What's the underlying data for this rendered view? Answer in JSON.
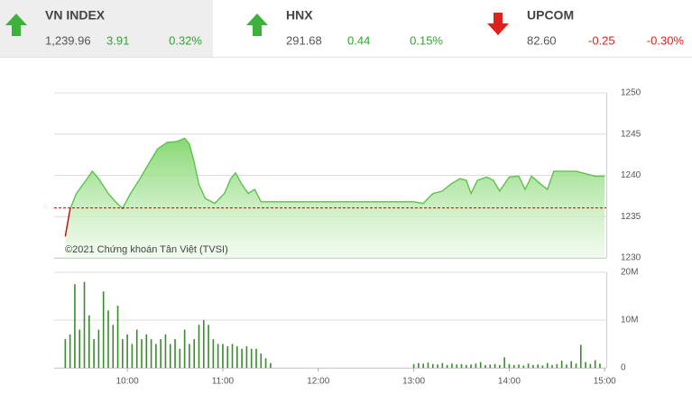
{
  "tickers": [
    {
      "name": "VN INDEX",
      "value": "1,239.96",
      "change": "3.91",
      "percent": "0.32%",
      "direction": "up"
    },
    {
      "name": "HNX",
      "value": "291.68",
      "change": "0.44",
      "percent": "0.15%",
      "direction": "up"
    },
    {
      "name": "UPCOM",
      "value": "82.60",
      "change": "-0.25",
      "percent": "-0.30%",
      "direction": "down"
    }
  ],
  "chart_data": [
    {
      "type": "area",
      "watermark": "©2021 Chứng khoán Tân Việt (TVSI)",
      "x": [
        561,
        564,
        568,
        574,
        578,
        582,
        588,
        593,
        597,
        602,
        608,
        614,
        619,
        625,
        631,
        636,
        639,
        642,
        645,
        649,
        655,
        661,
        665,
        668,
        672,
        676,
        680,
        684,
        690,
        780,
        786,
        792,
        798,
        803,
        809,
        813,
        816,
        820,
        826,
        830,
        834,
        840,
        846,
        850,
        854,
        860,
        864,
        868,
        882,
        894,
        900
      ],
      "series": [
        {
          "color": "#5cc24a",
          "values": [
            1232.6,
            1235.9,
            1237.8,
            1239.4,
            1240.5,
            1239.6,
            1237.8,
            1236.7,
            1236.0,
            1237.8,
            1239.6,
            1241.6,
            1243.2,
            1244.0,
            1244.1,
            1244.5,
            1243.8,
            1241.6,
            1238.9,
            1237.2,
            1236.6,
            1237.8,
            1239.6,
            1240.3,
            1238.9,
            1237.8,
            1238.3,
            1236.8,
            1236.8,
            1236.8,
            1236.6,
            1237.8,
            1238.1,
            1238.9,
            1239.6,
            1239.4,
            1237.8,
            1239.4,
            1239.8,
            1239.4,
            1238.1,
            1239.8,
            1239.9,
            1238.3,
            1239.9,
            1238.9,
            1238.3,
            1240.5,
            1240.5,
            1239.9,
            1239.9
          ]
        }
      ],
      "reference_line": {
        "value": 1236.05,
        "color": "#cc0000"
      },
      "below_color": "#cc0000",
      "xlim": [
        554,
        901
      ],
      "ylim": [
        1230,
        1250
      ],
      "yticks": [
        1230,
        1235,
        1240,
        1245,
        1250
      ],
      "grid": true
    },
    {
      "type": "bar",
      "x": [
        561,
        564,
        567,
        570,
        573,
        576,
        579,
        582,
        585,
        588,
        591,
        594,
        597,
        600,
        603,
        606,
        609,
        612,
        615,
        618,
        621,
        624,
        627,
        630,
        633,
        636,
        639,
        642,
        645,
        648,
        651,
        654,
        657,
        660,
        663,
        666,
        669,
        672,
        675,
        678,
        681,
        684,
        687,
        690,
        780,
        783,
        786,
        789,
        792,
        795,
        798,
        801,
        804,
        807,
        810,
        813,
        816,
        819,
        822,
        825,
        828,
        831,
        834,
        837,
        840,
        843,
        846,
        849,
        852,
        855,
        858,
        861,
        864,
        867,
        870,
        873,
        876,
        879,
        882,
        885,
        888,
        891,
        894,
        897
      ],
      "values": [
        6,
        7,
        17.5,
        8,
        18,
        11,
        6,
        8,
        16,
        12,
        9,
        13,
        6,
        7,
        5,
        8,
        6,
        7,
        6,
        5,
        6,
        7,
        5,
        6,
        4,
        8,
        5,
        6,
        9,
        10,
        9,
        6,
        5,
        5,
        4.5,
        5,
        4.5,
        4,
        4.5,
        4,
        4,
        3,
        2,
        1,
        0.8,
        1,
        0.9,
        1.1,
        0.8,
        0.7,
        1,
        0.6,
        0.9,
        0.7,
        0.8,
        0.6,
        0.7,
        0.9,
        1.2,
        0.6,
        0.7,
        0.8,
        0.6,
        2.2,
        0.8,
        0.6,
        0.7,
        0.5,
        0.9,
        0.6,
        0.7,
        0.5,
        1,
        0.6,
        0.8,
        1.5,
        0.7,
        1.4,
        0.9,
        4.8,
        1.2,
        0.8,
        1.6,
        0.9
      ],
      "color": "#3a8a2e",
      "xlim": [
        554,
        901
      ],
      "ylim": [
        0,
        20
      ],
      "yticks": [
        0,
        {
          "value": 10,
          "label": "10M"
        },
        {
          "value": 20,
          "label": "20M"
        }
      ],
      "xticks": [
        {
          "value": 600,
          "label": "10:00"
        },
        {
          "value": 660,
          "label": "11:00"
        },
        {
          "value": 720,
          "label": "12:00"
        },
        {
          "value": 780,
          "label": "13:00"
        },
        {
          "value": 840,
          "label": "14:00"
        },
        {
          "value": 900,
          "label": "15:00"
        }
      ],
      "grid": true
    }
  ]
}
